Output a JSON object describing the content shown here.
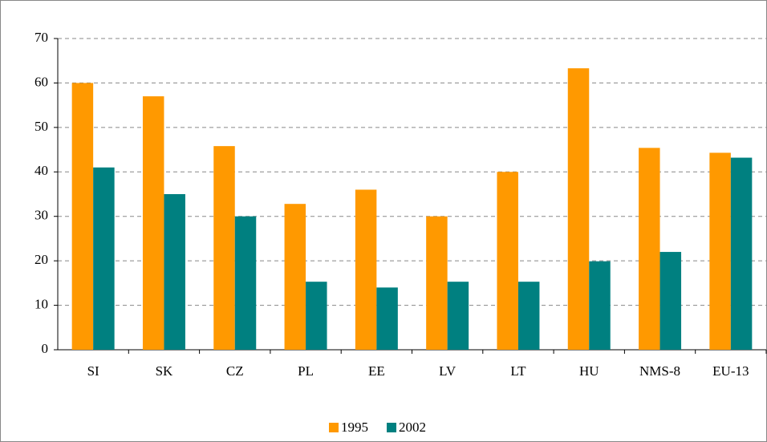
{
  "chart_data": {
    "type": "bar",
    "categories": [
      "SI",
      "SK",
      "CZ",
      "PL",
      "EE",
      "LV",
      "LT",
      "HU",
      "NMS-8",
      "EU-13"
    ],
    "series": [
      {
        "name": "1995",
        "color": "#ff9900",
        "values": [
          60,
          57,
          45.8,
          32.8,
          36,
          30,
          40,
          63.3,
          45.4,
          44.3
        ]
      },
      {
        "name": "2002",
        "color": "#008080",
        "values": [
          41,
          35,
          30,
          15.3,
          14,
          15.3,
          15.3,
          19.9,
          22,
          43.2
        ]
      }
    ],
    "ylim": [
      0,
      70
    ],
    "yticks": [
      0,
      10,
      20,
      30,
      40,
      50,
      60,
      70
    ],
    "grid": true,
    "legend": "bottom"
  }
}
